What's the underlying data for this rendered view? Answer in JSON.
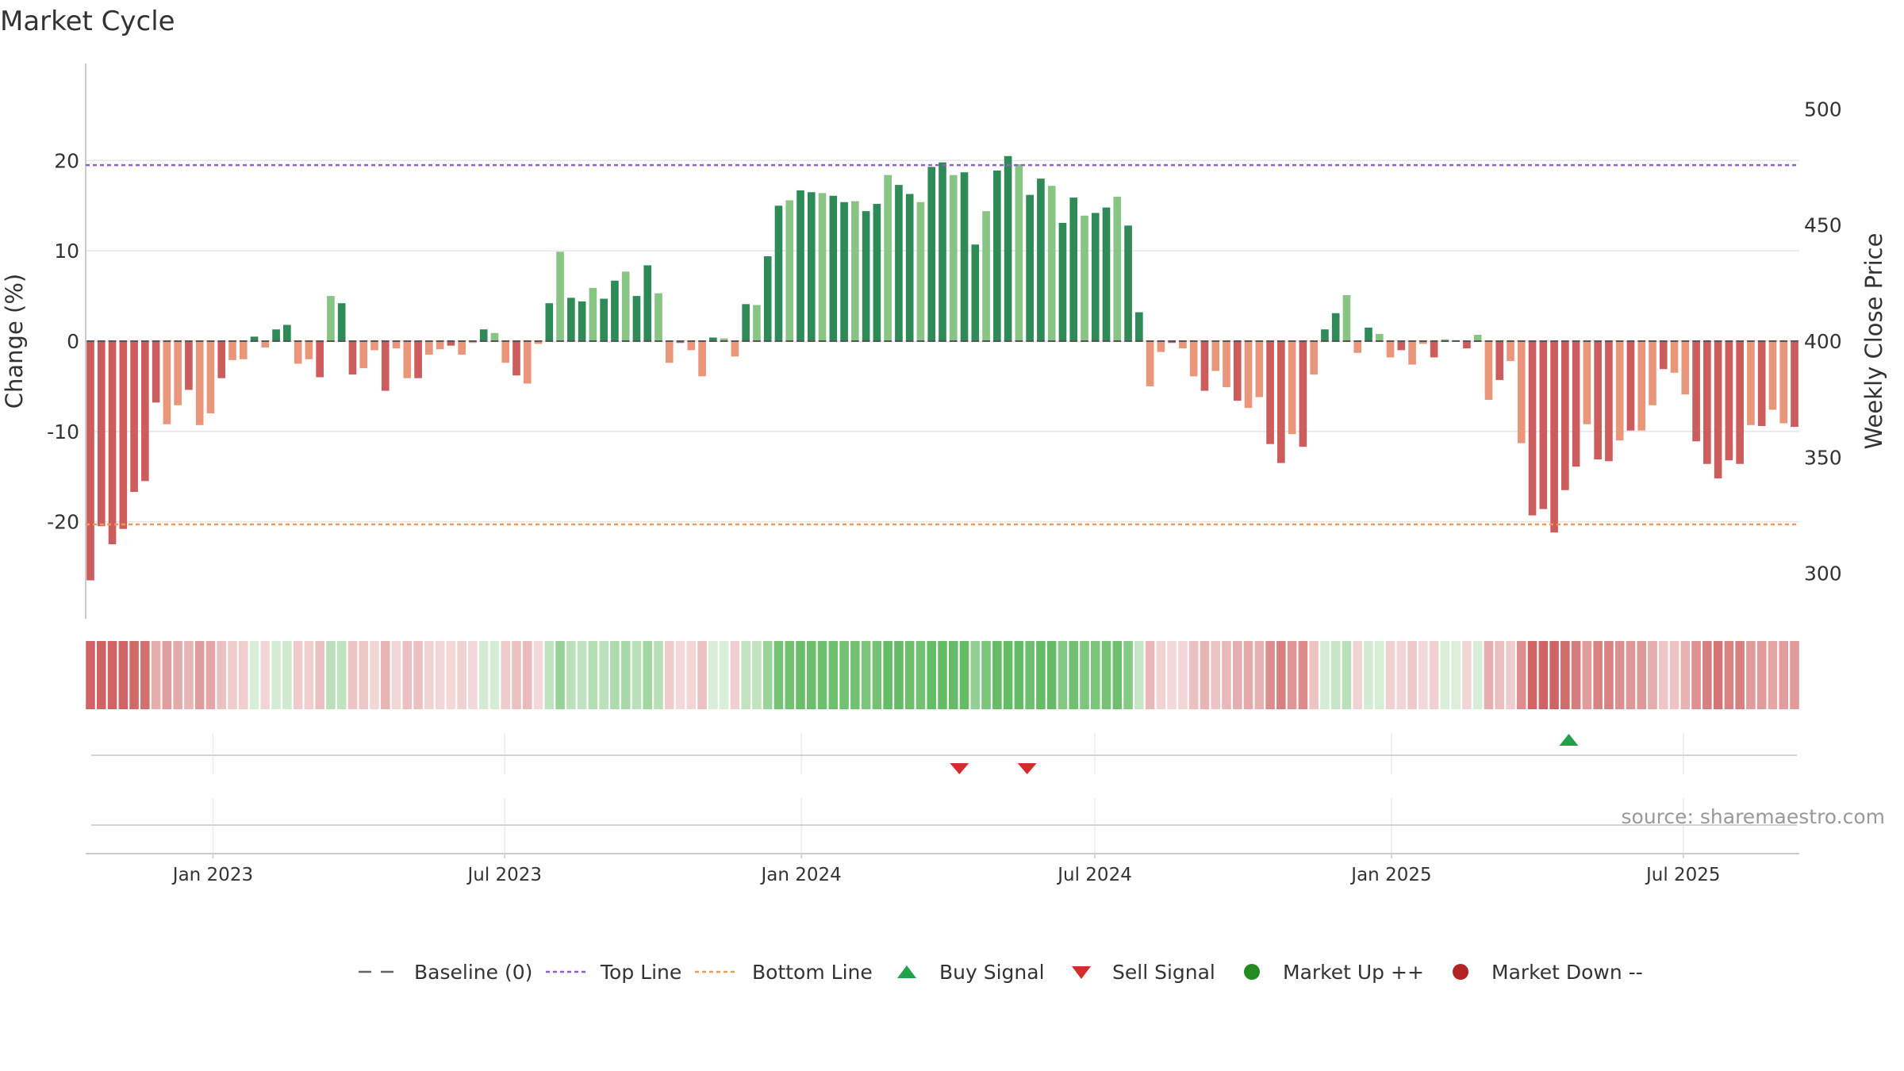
{
  "chart_data": {
    "type": "bar",
    "title": "Market Cycle",
    "ylabel": "Change (%)",
    "y2label": "Weekly Close Price",
    "ylim": [
      -29,
      29
    ],
    "y2lim": [
      290,
      510
    ],
    "yticks": [
      20,
      10,
      0,
      -10,
      -20
    ],
    "y2ticks": [
      500,
      450,
      400,
      350,
      300
    ],
    "top_line": 19.5,
    "bottom_line": -20.3,
    "x_start": "2022-10-17",
    "x_end": "2025-09-08",
    "xticks": [
      {
        "date": "2023-01-01",
        "label": "Jan 2023"
      },
      {
        "date": "2023-07-01",
        "label": "Jul 2023"
      },
      {
        "date": "2024-01-01",
        "label": "Jan 2024"
      },
      {
        "date": "2024-07-01",
        "label": "Jul 2024"
      },
      {
        "date": "2025-01-01",
        "label": "Jan 2025"
      },
      {
        "date": "2025-07-01",
        "label": "Jul 2025"
      }
    ],
    "values": [
      -26.5,
      -20.5,
      -22.5,
      -20.8,
      -16.7,
      -15.5,
      -6.8,
      -9.2,
      -7.1,
      -5.4,
      -9.3,
      -8.0,
      -4.1,
      -2.1,
      -2.0,
      0.5,
      -0.7,
      1.3,
      1.8,
      -2.5,
      -2.0,
      -4.0,
      5.0,
      4.2,
      -3.7,
      -3.0,
      -1.0,
      -5.5,
      -0.8,
      -4.1,
      -4.1,
      -1.5,
      -0.9,
      -0.5,
      -1.5,
      -0.2,
      1.3,
      0.9,
      -2.4,
      -3.8,
      -4.7,
      -0.3,
      4.2,
      9.9,
      4.8,
      4.4,
      5.9,
      4.7,
      6.7,
      7.7,
      5.0,
      8.4,
      5.3,
      -2.4,
      -0.2,
      -1.0,
      -3.9,
      0.4,
      0.3,
      -1.7,
      4.1,
      4.0,
      9.4,
      15.0,
      15.6,
      16.7,
      16.5,
      16.4,
      16.1,
      15.4,
      15.5,
      14.4,
      15.2,
      18.4,
      17.3,
      16.3,
      15.4,
      19.3,
      19.8,
      18.4,
      18.7,
      10.7,
      14.4,
      18.9,
      20.5,
      19.6,
      16.2,
      18.0,
      17.2,
      13.1,
      15.9,
      13.9,
      14.2,
      14.8,
      16.0,
      12.8,
      3.2,
      -5.0,
      -1.2,
      -0.2,
      -0.8,
      -3.9,
      -5.5,
      -3.3,
      -5.1,
      -6.6,
      -7.4,
      -6.2,
      -11.4,
      -13.5,
      -10.3,
      -11.7,
      -3.7,
      1.3,
      3.1,
      5.1,
      -1.3,
      1.5,
      0.8,
      -1.8,
      -1.0,
      -2.6,
      -0.3,
      -1.8,
      0.2,
      0.1,
      -0.8,
      0.7,
      -6.5,
      -4.3,
      -2.2,
      -11.3,
      -19.3,
      -18.6,
      -21.2,
      -16.5,
      -13.9,
      -9.2,
      -13.1,
      -13.3,
      -11.0,
      -9.9,
      -9.9,
      -7.1,
      -3.1,
      -3.5,
      -5.9,
      -11.1,
      -13.6,
      -15.2,
      -13.2,
      -13.6,
      -9.3,
      -9.4,
      -7.6,
      -9.1,
      -9.5
    ],
    "buy_signals": [
      "2025-04-21"
    ],
    "sell_signals": [
      "2024-04-08",
      "2024-05-20"
    ],
    "series": [
      {
        "name": "Baseline (0)",
        "color": "#666666",
        "style": "dashed"
      },
      {
        "name": "Top Line",
        "color": "#8e5ed1",
        "style": "dotted"
      },
      {
        "name": "Bottom Line",
        "color": "#ec9a5c",
        "style": "dotted"
      },
      {
        "name": "Buy Signal",
        "color": "#22a04b",
        "marker": "triangle-up"
      },
      {
        "name": "Sell Signal",
        "color": "#d42c2c",
        "marker": "triangle-down"
      },
      {
        "name": "Market Up ++",
        "color": "#238b22",
        "marker": "circle"
      },
      {
        "name": "Market Down --",
        "color": "#b22424",
        "marker": "circle"
      }
    ],
    "source": "source: sharemaestro.com",
    "colors": {
      "pos_dark": "#2e8b57",
      "pos_light": "#88c484",
      "neg_dark": "#cd5c5c",
      "neg_light": "#e9967a",
      "strip_pos": "#5cb85c",
      "strip_neg": "#cd5c5c",
      "grid": "#e6e6e6"
    }
  }
}
